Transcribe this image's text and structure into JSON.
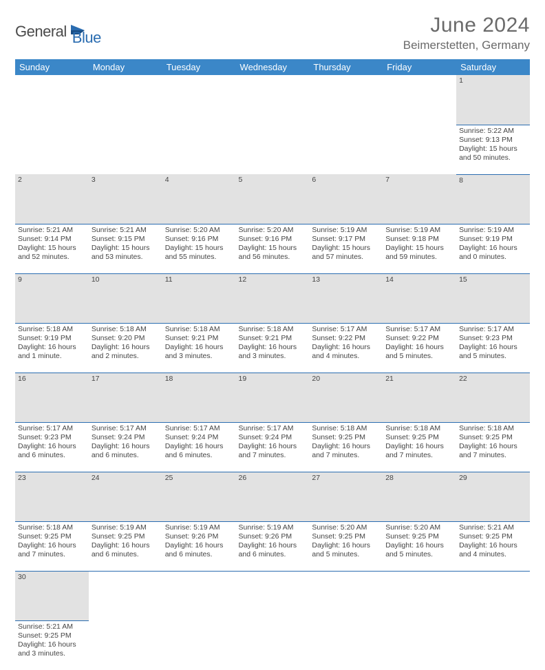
{
  "brand": {
    "name1": "General",
    "name2": "Blue"
  },
  "title": "June 2024",
  "location": "Beimerstetten, Germany",
  "colors": {
    "header_bg": "#3b87c8",
    "header_text": "#ffffff",
    "daynum_bg": "#e2e2e2",
    "border": "#2a6cb0",
    "text": "#444444",
    "title_color": "#6a6a6a"
  },
  "day_headers": [
    "Sunday",
    "Monday",
    "Tuesday",
    "Wednesday",
    "Thursday",
    "Friday",
    "Saturday"
  ],
  "weeks": [
    {
      "nums": [
        "",
        "",
        "",
        "",
        "",
        "",
        "1"
      ],
      "cells": [
        null,
        null,
        null,
        null,
        null,
        null,
        {
          "sunrise": "Sunrise: 5:22 AM",
          "sunset": "Sunset: 9:13 PM",
          "d1": "Daylight: 15 hours",
          "d2": "and 50 minutes."
        }
      ]
    },
    {
      "nums": [
        "2",
        "3",
        "4",
        "5",
        "6",
        "7",
        "8"
      ],
      "cells": [
        {
          "sunrise": "Sunrise: 5:21 AM",
          "sunset": "Sunset: 9:14 PM",
          "d1": "Daylight: 15 hours",
          "d2": "and 52 minutes."
        },
        {
          "sunrise": "Sunrise: 5:21 AM",
          "sunset": "Sunset: 9:15 PM",
          "d1": "Daylight: 15 hours",
          "d2": "and 53 minutes."
        },
        {
          "sunrise": "Sunrise: 5:20 AM",
          "sunset": "Sunset: 9:16 PM",
          "d1": "Daylight: 15 hours",
          "d2": "and 55 minutes."
        },
        {
          "sunrise": "Sunrise: 5:20 AM",
          "sunset": "Sunset: 9:16 PM",
          "d1": "Daylight: 15 hours",
          "d2": "and 56 minutes."
        },
        {
          "sunrise": "Sunrise: 5:19 AM",
          "sunset": "Sunset: 9:17 PM",
          "d1": "Daylight: 15 hours",
          "d2": "and 57 minutes."
        },
        {
          "sunrise": "Sunrise: 5:19 AM",
          "sunset": "Sunset: 9:18 PM",
          "d1": "Daylight: 15 hours",
          "d2": "and 59 minutes."
        },
        {
          "sunrise": "Sunrise: 5:19 AM",
          "sunset": "Sunset: 9:19 PM",
          "d1": "Daylight: 16 hours",
          "d2": "and 0 minutes."
        }
      ]
    },
    {
      "nums": [
        "9",
        "10",
        "11",
        "12",
        "13",
        "14",
        "15"
      ],
      "cells": [
        {
          "sunrise": "Sunrise: 5:18 AM",
          "sunset": "Sunset: 9:19 PM",
          "d1": "Daylight: 16 hours",
          "d2": "and 1 minute."
        },
        {
          "sunrise": "Sunrise: 5:18 AM",
          "sunset": "Sunset: 9:20 PM",
          "d1": "Daylight: 16 hours",
          "d2": "and 2 minutes."
        },
        {
          "sunrise": "Sunrise: 5:18 AM",
          "sunset": "Sunset: 9:21 PM",
          "d1": "Daylight: 16 hours",
          "d2": "and 3 minutes."
        },
        {
          "sunrise": "Sunrise: 5:18 AM",
          "sunset": "Sunset: 9:21 PM",
          "d1": "Daylight: 16 hours",
          "d2": "and 3 minutes."
        },
        {
          "sunrise": "Sunrise: 5:17 AM",
          "sunset": "Sunset: 9:22 PM",
          "d1": "Daylight: 16 hours",
          "d2": "and 4 minutes."
        },
        {
          "sunrise": "Sunrise: 5:17 AM",
          "sunset": "Sunset: 9:22 PM",
          "d1": "Daylight: 16 hours",
          "d2": "and 5 minutes."
        },
        {
          "sunrise": "Sunrise: 5:17 AM",
          "sunset": "Sunset: 9:23 PM",
          "d1": "Daylight: 16 hours",
          "d2": "and 5 minutes."
        }
      ]
    },
    {
      "nums": [
        "16",
        "17",
        "18",
        "19",
        "20",
        "21",
        "22"
      ],
      "cells": [
        {
          "sunrise": "Sunrise: 5:17 AM",
          "sunset": "Sunset: 9:23 PM",
          "d1": "Daylight: 16 hours",
          "d2": "and 6 minutes."
        },
        {
          "sunrise": "Sunrise: 5:17 AM",
          "sunset": "Sunset: 9:24 PM",
          "d1": "Daylight: 16 hours",
          "d2": "and 6 minutes."
        },
        {
          "sunrise": "Sunrise: 5:17 AM",
          "sunset": "Sunset: 9:24 PM",
          "d1": "Daylight: 16 hours",
          "d2": "and 6 minutes."
        },
        {
          "sunrise": "Sunrise: 5:17 AM",
          "sunset": "Sunset: 9:24 PM",
          "d1": "Daylight: 16 hours",
          "d2": "and 7 minutes."
        },
        {
          "sunrise": "Sunrise: 5:18 AM",
          "sunset": "Sunset: 9:25 PM",
          "d1": "Daylight: 16 hours",
          "d2": "and 7 minutes."
        },
        {
          "sunrise": "Sunrise: 5:18 AM",
          "sunset": "Sunset: 9:25 PM",
          "d1": "Daylight: 16 hours",
          "d2": "and 7 minutes."
        },
        {
          "sunrise": "Sunrise: 5:18 AM",
          "sunset": "Sunset: 9:25 PM",
          "d1": "Daylight: 16 hours",
          "d2": "and 7 minutes."
        }
      ]
    },
    {
      "nums": [
        "23",
        "24",
        "25",
        "26",
        "27",
        "28",
        "29"
      ],
      "cells": [
        {
          "sunrise": "Sunrise: 5:18 AM",
          "sunset": "Sunset: 9:25 PM",
          "d1": "Daylight: 16 hours",
          "d2": "and 7 minutes."
        },
        {
          "sunrise": "Sunrise: 5:19 AM",
          "sunset": "Sunset: 9:25 PM",
          "d1": "Daylight: 16 hours",
          "d2": "and 6 minutes."
        },
        {
          "sunrise": "Sunrise: 5:19 AM",
          "sunset": "Sunset: 9:26 PM",
          "d1": "Daylight: 16 hours",
          "d2": "and 6 minutes."
        },
        {
          "sunrise": "Sunrise: 5:19 AM",
          "sunset": "Sunset: 9:26 PM",
          "d1": "Daylight: 16 hours",
          "d2": "and 6 minutes."
        },
        {
          "sunrise": "Sunrise: 5:20 AM",
          "sunset": "Sunset: 9:25 PM",
          "d1": "Daylight: 16 hours",
          "d2": "and 5 minutes."
        },
        {
          "sunrise": "Sunrise: 5:20 AM",
          "sunset": "Sunset: 9:25 PM",
          "d1": "Daylight: 16 hours",
          "d2": "and 5 minutes."
        },
        {
          "sunrise": "Sunrise: 5:21 AM",
          "sunset": "Sunset: 9:25 PM",
          "d1": "Daylight: 16 hours",
          "d2": "and 4 minutes."
        }
      ]
    },
    {
      "nums": [
        "30",
        "",
        "",
        "",
        "",
        "",
        ""
      ],
      "cells": [
        {
          "sunrise": "Sunrise: 5:21 AM",
          "sunset": "Sunset: 9:25 PM",
          "d1": "Daylight: 16 hours",
          "d2": "and 3 minutes."
        },
        null,
        null,
        null,
        null,
        null,
        null
      ],
      "last": true
    }
  ]
}
